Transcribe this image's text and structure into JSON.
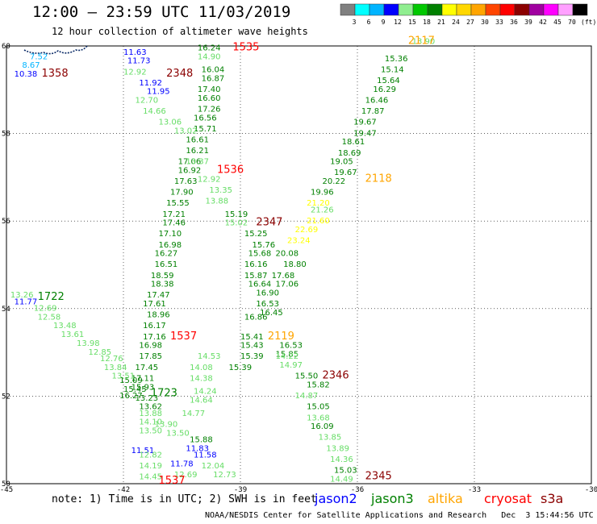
{
  "title": "12:00 – 23:59 UTC 11/03/2019",
  "subtitle": "12 hour collection of altimeter wave heights",
  "note": "note: 1) Time is in UTC; 2) SWH is in feet",
  "footer": "NOAA/NESDIS Center for Satellite Applications and Research   Dec  3 15:44:56 UTC 2019",
  "units_label": "(ft)",
  "colorbar": [
    {
      "label": "3",
      "color": "#808080"
    },
    {
      "label": "6",
      "color": "#00ffff"
    },
    {
      "label": "9",
      "color": "#00b4ff"
    },
    {
      "label": "12",
      "color": "#0000ff"
    },
    {
      "label": "15",
      "color": "#90ee90"
    },
    {
      "label": "18",
      "color": "#00c800"
    },
    {
      "label": "21",
      "color": "#008000"
    },
    {
      "label": "24",
      "color": "#ffff00"
    },
    {
      "label": "27",
      "color": "#ffd700"
    },
    {
      "label": "30",
      "color": "#ffa500"
    },
    {
      "label": "33",
      "color": "#ff4500"
    },
    {
      "label": "36",
      "color": "#ff0000"
    },
    {
      "label": "39",
      "color": "#8b0000"
    },
    {
      "label": "42",
      "color": "#a000a0"
    },
    {
      "label": "45",
      "color": "#ff00ff"
    },
    {
      "label": "70",
      "color": "#ffa0ff"
    },
    {
      "label": "",
      "color": "#000000"
    }
  ],
  "satellites": [
    {
      "name": "jason2",
      "color": "#0000ff"
    },
    {
      "name": "jason3",
      "color": "#008000"
    },
    {
      "name": "altika",
      "color": "#ffa500"
    },
    {
      "name": "cryosat",
      "color": "#ff0000"
    },
    {
      "name": "s3a",
      "color": "#8b0000"
    }
  ],
  "lon_ticks": [
    "-45",
    "-42",
    "-39",
    "-36",
    "-33",
    "-30"
  ],
  "lat_ticks": [
    "60",
    "58",
    "56",
    "54",
    "52",
    "50"
  ],
  "time_labels": [
    {
      "text": "1535",
      "color": "#ff0000",
      "lon": -39.2,
      "lat": 59.9
    },
    {
      "text": "2348",
      "color": "#8b0000",
      "lon": -40.9,
      "lat": 59.3
    },
    {
      "text": "1358",
      "color": "#8b0000",
      "lon": -44.1,
      "lat": 59.3
    },
    {
      "text": "2117",
      "color": "#ffa500",
      "lon": -34.7,
      "lat": 60.05
    },
    {
      "text": "1536",
      "color": "#ff0000",
      "lon": -39.6,
      "lat": 57.1
    },
    {
      "text": "2118",
      "color": "#ffa500",
      "lon": -35.8,
      "lat": 56.9
    },
    {
      "text": "2347",
      "color": "#8b0000",
      "lon": -38.6,
      "lat": 55.9
    },
    {
      "text": "1722",
      "color": "#008000",
      "lon": -44.2,
      "lat": 54.2
    },
    {
      "text": "2119",
      "color": "#ffa500",
      "lon": -38.3,
      "lat": 53.3
    },
    {
      "text": "1537",
      "color": "#ff0000",
      "lon": -40.8,
      "lat": 53.3
    },
    {
      "text": "2346",
      "color": "#8b0000",
      "lon": -36.9,
      "lat": 52.4
    },
    {
      "text": "1723",
      "color": "#008000",
      "lon": -41.3,
      "lat": 52.0
    },
    {
      "text": "2345",
      "color": "#8b0000",
      "lon": -35.8,
      "lat": 50.1
    },
    {
      "text": "1537",
      "color": "#ff0000",
      "lon": -41.1,
      "lat": 50.0
    }
  ],
  "swh_tracks": [
    {
      "color": "#0000ff",
      "points": [
        {
          "v": "11.63",
          "lon": -42.0,
          "lat": 59.8
        },
        {
          "v": "11.73",
          "lon": -41.9,
          "lat": 59.6
        },
        {
          "v": "11.92",
          "lon": -41.6,
          "lat": 59.1
        },
        {
          "v": "11.95",
          "lon": -41.4,
          "lat": 58.9
        },
        {
          "v": "11.77",
          "lon": -44.8,
          "lat": 54.1
        },
        {
          "v": "11.51",
          "lon": -41.8,
          "lat": 50.7
        },
        {
          "v": "11.83",
          "lon": -40.4,
          "lat": 50.75
        },
        {
          "v": "11.58",
          "lon": -40.2,
          "lat": 50.6
        },
        {
          "v": "11.78",
          "lon": -40.8,
          "lat": 50.4
        },
        {
          "v": "10.38",
          "lon": -44.8,
          "lat": 59.3
        }
      ]
    },
    {
      "color": "#00b4ff",
      "points": [
        {
          "v": "7.52",
          "lon": -44.4,
          "lat": 59.7
        },
        {
          "v": "8.67",
          "lon": -44.6,
          "lat": 59.5
        }
      ]
    },
    {
      "color": "#008000",
      "points": [
        {
          "v": "16.24",
          "lon": -40.1,
          "lat": 59.9
        },
        {
          "v": "16.04",
          "lon": -40.0,
          "lat": 59.4
        },
        {
          "v": "16.87",
          "lon": -40.0,
          "lat": 59.2
        },
        {
          "v": "17.40",
          "lon": -40.1,
          "lat": 58.95
        },
        {
          "v": "16.60",
          "lon": -40.1,
          "lat": 58.75
        },
        {
          "v": "17.26",
          "lon": -40.1,
          "lat": 58.5
        },
        {
          "v": "16.56",
          "lon": -40.2,
          "lat": 58.3
        },
        {
          "v": "15.71",
          "lon": -40.2,
          "lat": 58.05
        },
        {
          "v": "16.61",
          "lon": -40.4,
          "lat": 57.8
        },
        {
          "v": "16.21",
          "lon": -40.4,
          "lat": 57.55
        },
        {
          "v": "17.06",
          "lon": -40.6,
          "lat": 57.3
        },
        {
          "v": "16.92",
          "lon": -40.6,
          "lat": 57.1
        },
        {
          "v": "17.63",
          "lon": -40.7,
          "lat": 56.85
        },
        {
          "v": "17.90",
          "lon": -40.8,
          "lat": 56.6
        },
        {
          "v": "15.55",
          "lon": -40.9,
          "lat": 56.35
        },
        {
          "v": "17.21",
          "lon": -41.0,
          "lat": 56.1
        },
        {
          "v": "17.46",
          "lon": -41.0,
          "lat": 55.9
        },
        {
          "v": "17.10",
          "lon": -41.1,
          "lat": 55.65
        },
        {
          "v": "16.98",
          "lon": -41.1,
          "lat": 55.4
        },
        {
          "v": "16.27",
          "lon": -41.2,
          "lat": 55.2
        },
        {
          "v": "16.51",
          "lon": -41.2,
          "lat": 54.95
        },
        {
          "v": "18.59",
          "lon": -41.3,
          "lat": 54.7
        },
        {
          "v": "18.38",
          "lon": -41.3,
          "lat": 54.5
        },
        {
          "v": "17.47",
          "lon": -41.4,
          "lat": 54.25
        },
        {
          "v": "17.61",
          "lon": -41.5,
          "lat": 54.05
        },
        {
          "v": "18.96",
          "lon": -41.4,
          "lat": 53.8
        },
        {
          "v": "16.17",
          "lon": -41.5,
          "lat": 53.55
        },
        {
          "v": "17.16",
          "lon": -41.5,
          "lat": 53.3
        },
        {
          "v": "16.98",
          "lon": -41.6,
          "lat": 53.1
        },
        {
          "v": "17.85",
          "lon": -41.6,
          "lat": 52.85
        },
        {
          "v": "17.45",
          "lon": -41.7,
          "lat": 52.6
        },
        {
          "v": "17.11",
          "lon": -41.8,
          "lat": 52.35
        },
        {
          "v": "15.93",
          "lon": -41.8,
          "lat": 52.15
        },
        {
          "v": "16.27",
          "lon": -42.1,
          "lat": 51.95
        },
        {
          "v": "15.25",
          "lon": -38.9,
          "lat": 55.65
        },
        {
          "v": "15.76",
          "lon": -38.7,
          "lat": 55.4
        },
        {
          "v": "15.68",
          "lon": -38.8,
          "lat": 55.2
        },
        {
          "v": "16.16",
          "lon": -38.9,
          "lat": 54.95
        },
        {
          "v": "15.87",
          "lon": -38.9,
          "lat": 54.7
        },
        {
          "v": "16.64",
          "lon": -38.8,
          "lat": 54.5
        },
        {
          "v": "16.90",
          "lon": -38.6,
          "lat": 54.3
        },
        {
          "v": "16.53",
          "lon": -38.6,
          "lat": 54.05
        },
        {
          "v": "16.45",
          "lon": -38.5,
          "lat": 53.85
        },
        {
          "v": "16.86",
          "lon": -38.9,
          "lat": 53.75
        },
        {
          "v": "15.41",
          "lon": -39.0,
          "lat": 53.3
        },
        {
          "v": "15.43",
          "lon": -39.0,
          "lat": 53.1
        },
        {
          "v": "15.39",
          "lon": -39.0,
          "lat": 52.85
        },
        {
          "v": "15.39",
          "lon": -39.3,
          "lat": 52.6
        },
        {
          "v": "20.08",
          "lon": -38.1,
          "lat": 55.2
        },
        {
          "v": "18.80",
          "lon": -37.9,
          "lat": 54.95
        },
        {
          "v": "17.68",
          "lon": -38.2,
          "lat": 54.7
        },
        {
          "v": "17.06",
          "lon": -38.1,
          "lat": 54.5
        },
        {
          "v": "16.53",
          "lon": -38.0,
          "lat": 53.1
        },
        {
          "v": "15.85",
          "lon": -38.1,
          "lat": 52.9
        },
        {
          "v": "15.50",
          "lon": -37.6,
          "lat": 52.4
        },
        {
          "v": "15.82",
          "lon": -37.3,
          "lat": 52.2
        },
        {
          "v": "15.05",
          "lon": -37.3,
          "lat": 51.7
        },
        {
          "v": "16.09",
          "lon": -37.2,
          "lat": 51.25
        },
        {
          "v": "15.03",
          "lon": -36.6,
          "lat": 50.25
        },
        {
          "v": "15.36",
          "lon": -35.3,
          "lat": 59.65
        },
        {
          "v": "15.14",
          "lon": -35.4,
          "lat": 59.4
        },
        {
          "v": "15.64",
          "lon": -35.5,
          "lat": 59.15
        },
        {
          "v": "16.29",
          "lon": -35.6,
          "lat": 58.95
        },
        {
          "v": "16.46",
          "lon": -35.8,
          "lat": 58.7
        },
        {
          "v": "17.87",
          "lon": -35.9,
          "lat": 58.45
        },
        {
          "v": "19.67",
          "lon": -36.1,
          "lat": 58.2
        },
        {
          "v": "19.47",
          "lon": -36.1,
          "lat": 57.95
        },
        {
          "v": "18.61",
          "lon": -36.4,
          "lat": 57.75
        },
        {
          "v": "18.69",
          "lon": -36.5,
          "lat": 57.5
        },
        {
          "v": "19.05",
          "lon": -36.7,
          "lat": 57.3
        },
        {
          "v": "19.67",
          "lon": -36.6,
          "lat": 57.05
        },
        {
          "v": "20.22",
          "lon": -36.9,
          "lat": 56.85
        },
        {
          "v": "19.96",
          "lon": -37.2,
          "lat": 56.6
        },
        {
          "v": "15.19",
          "lon": -39.4,
          "lat": 56.1
        },
        {
          "v": "15.09",
          "lon": -42.1,
          "lat": 52.3
        },
        {
          "v": "15.45",
          "lon": -42.0,
          "lat": 52.1
        },
        {
          "v": "15.88",
          "lon": -40.3,
          "lat": 50.95
        },
        {
          "v": "13.23",
          "lon": -41.7,
          "lat": 51.9
        },
        {
          "v": "13.62",
          "lon": -41.6,
          "lat": 51.7
        }
      ]
    },
    {
      "color": "#66dd66",
      "points": [
        {
          "v": "14.90",
          "lon": -40.1,
          "lat": 59.7
        },
        {
          "v": "12.92",
          "lon": -42.0,
          "lat": 59.35
        },
        {
          "v": "12.70",
          "lon": -41.7,
          "lat": 58.7
        },
        {
          "v": "14.66",
          "lon": -41.5,
          "lat": 58.45
        },
        {
          "v": "13.06",
          "lon": -41.1,
          "lat": 58.2
        },
        {
          "v": "13.02",
          "lon": -40.7,
          "lat": 58.0
        },
        {
          "v": "13.37",
          "lon": -40.4,
          "lat": 57.3
        },
        {
          "v": "12.92",
          "lon": -40.1,
          "lat": 56.9
        },
        {
          "v": "13.35",
          "lon": -39.8,
          "lat": 56.65
        },
        {
          "v": "13.88",
          "lon": -39.9,
          "lat": 56.4
        },
        {
          "v": "15.02",
          "lon": -39.4,
          "lat": 55.9
        },
        {
          "v": "13.26",
          "lon": -44.9,
          "lat": 54.25
        },
        {
          "v": "12.69",
          "lon": -44.3,
          "lat": 53.95
        },
        {
          "v": "12.58",
          "lon": -44.2,
          "lat": 53.75
        },
        {
          "v": "13.48",
          "lon": -43.8,
          "lat": 53.55
        },
        {
          "v": "13.61",
          "lon": -43.6,
          "lat": 53.35
        },
        {
          "v": "13.98",
          "lon": -43.2,
          "lat": 53.15
        },
        {
          "v": "12.85",
          "lon": -42.9,
          "lat": 52.95
        },
        {
          "v": "12.76",
          "lon": -42.6,
          "lat": 52.8
        },
        {
          "v": "13.84",
          "lon": -42.5,
          "lat": 52.6
        },
        {
          "v": "13.51",
          "lon": -42.3,
          "lat": 52.4
        },
        {
          "v": "13.88",
          "lon": -41.6,
          "lat": 51.55
        },
        {
          "v": "14.10",
          "lon": -41.6,
          "lat": 51.35
        },
        {
          "v": "13.50",
          "lon": -41.6,
          "lat": 51.15
        },
        {
          "v": "12.82",
          "lon": -41.6,
          "lat": 50.6
        },
        {
          "v": "14.19",
          "lon": -41.6,
          "lat": 50.35
        },
        {
          "v": "14.45",
          "lon": -41.6,
          "lat": 50.1
        },
        {
          "v": "14.77",
          "lon": -40.5,
          "lat": 51.55
        },
        {
          "v": "14.64",
          "lon": -40.3,
          "lat": 51.85
        },
        {
          "v": "14.24",
          "lon": -40.2,
          "lat": 52.05
        },
        {
          "v": "14.38",
          "lon": -40.3,
          "lat": 52.35
        },
        {
          "v": "14.08",
          "lon": -40.3,
          "lat": 52.6
        },
        {
          "v": "14.53",
          "lon": -40.1,
          "lat": 52.85
        },
        {
          "v": "13.90",
          "lon": -41.2,
          "lat": 51.3
        },
        {
          "v": "12.04",
          "lon": -40.0,
          "lat": 50.35
        },
        {
          "v": "12.73",
          "lon": -39.7,
          "lat": 50.15
        },
        {
          "v": "12.69",
          "lon": -40.7,
          "lat": 50.15
        },
        {
          "v": "13.50",
          "lon": -40.9,
          "lat": 51.1
        },
        {
          "v": "13.90",
          "lon": -34.6,
          "lat": 60.05
        },
        {
          "v": "21.26",
          "lon": -37.2,
          "lat": 56.2
        },
        {
          "v": "14.97",
          "lon": -38.0,
          "lat": 52.65
        },
        {
          "v": "14.22",
          "lon": -38.1,
          "lat": 52.85
        },
        {
          "v": "14.87",
          "lon": -37.6,
          "lat": 51.95
        },
        {
          "v": "13.68",
          "lon": -37.3,
          "lat": 51.45
        },
        {
          "v": "13.85",
          "lon": -37.0,
          "lat": 51.0
        },
        {
          "v": "13.89",
          "lon": -36.8,
          "lat": 50.75
        },
        {
          "v": "14.36",
          "lon": -36.7,
          "lat": 50.5
        },
        {
          "v": "14.49",
          "lon": -36.7,
          "lat": 50.05
        }
      ]
    },
    {
      "color": "#ffff00",
      "points": [
        {
          "v": "21.20",
          "lon": -37.3,
          "lat": 56.35
        },
        {
          "v": "21.60",
          "lon": -37.3,
          "lat": 55.95
        },
        {
          "v": "22.69",
          "lon": -37.6,
          "lat": 55.75
        },
        {
          "v": "23.24",
          "lon": -37.8,
          "lat": 55.5
        }
      ]
    }
  ]
}
